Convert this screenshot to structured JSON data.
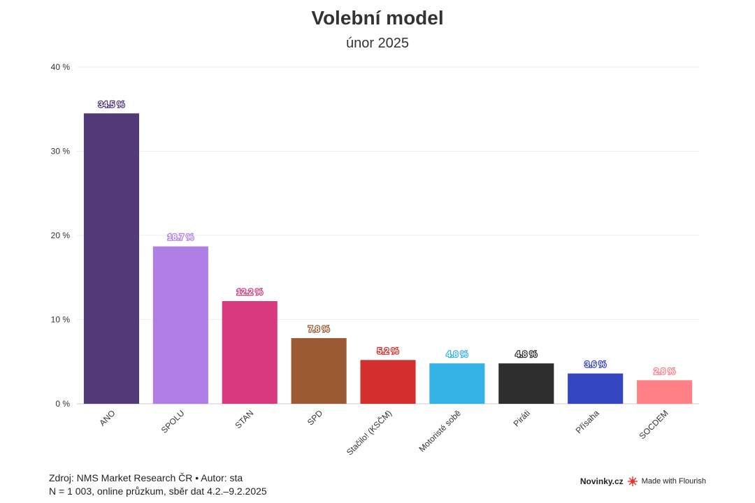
{
  "header": {
    "title": "Volební model",
    "subtitle": "únor 2025"
  },
  "footer": {
    "source": "Zdroj: NMS Market Research ČR • Autor: sta",
    "note": "N = 1 003, online průzkum, sběr dat 4.2.–9.2.2025"
  },
  "branding": {
    "publisher": "Novinky.cz",
    "made_with": "Made with Flourish",
    "icon": "flourish-icon"
  },
  "chart_data": {
    "type": "bar",
    "title": "Volební model",
    "subtitle": "únor 2025",
    "categories": [
      "ANO",
      "SPOLU",
      "STAN",
      "SPD",
      "Stačilo! (KSČM)",
      "Motoristé sobě",
      "Piráti",
      "Přísaha",
      "SOCDEM"
    ],
    "values": [
      34.5,
      18.7,
      12.2,
      7.8,
      5.2,
      4.8,
      4.8,
      3.6,
      2.8
    ],
    "value_labels": [
      "34.5 %",
      "18.7 %",
      "12.2 %",
      "7.8 %",
      "5.2 %",
      "4.8 %",
      "4.8 %",
      "3.6 %",
      "2.8 %"
    ],
    "colors": [
      "#523a78",
      "#b07fe6",
      "#d93a7e",
      "#9b5a31",
      "#d42f2f",
      "#35b2e6",
      "#2e2e2e",
      "#3446c0",
      "#ff8086"
    ],
    "label_colors": [
      "#523a78",
      "#b07fe6",
      "#d93a7e",
      "#9b5a31",
      "#d42f2f",
      "#35b2e6",
      "#2e2e2e",
      "#3446c0",
      "#ff8086"
    ],
    "yticks": [
      "0 %",
      "10 %",
      "20 %",
      "30 %",
      "40 %"
    ],
    "ytick_values": [
      0,
      10,
      20,
      30,
      40
    ],
    "ylim": [
      0,
      40
    ],
    "xlabel": "",
    "ylabel": "",
    "grid": true,
    "legend": "none"
  }
}
